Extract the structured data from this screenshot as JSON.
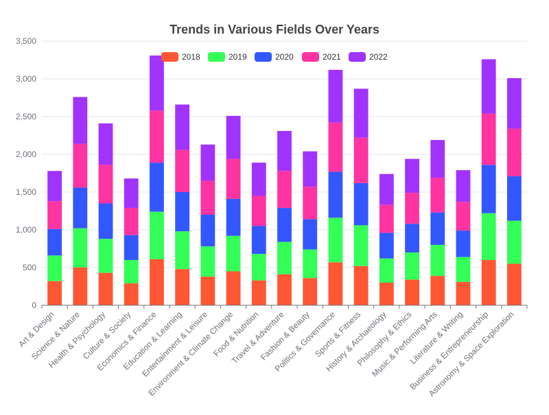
{
  "chart_data": {
    "type": "bar",
    "stacked": true,
    "title": "Trends in Various Fields Over Years",
    "xlabel": "",
    "ylabel": "",
    "ylim": [
      0,
      3500
    ],
    "yticks": [
      0,
      500,
      1000,
      1500,
      2000,
      2500,
      3000,
      3500
    ],
    "ytick_labels": [
      "0",
      "500",
      "1,000",
      "1,500",
      "2,000",
      "2,500",
      "3,000",
      "3,500"
    ],
    "grid": true,
    "legend_position": "top",
    "categories": [
      "Art & Design",
      "Science & Nature",
      "Health & Psychology",
      "Culture & Society",
      "Economics & Finance",
      "Education & Learning",
      "Entertainment & Leisure",
      "Environment & Climate Change",
      "Food & Nutrition",
      "Travel & Adventure",
      "Fashion & Beauty",
      "Politics & Governance",
      "Sports & Fitness",
      "History & Archaeology",
      "Philosophy & Ethics",
      "Music & Performing Arts",
      "Literature & Writing",
      "Business & Entrepreneurship",
      "Astronomy & Space Exploration"
    ],
    "series": [
      {
        "name": "2018",
        "color": "#ff5733",
        "values": [
          320,
          500,
          430,
          290,
          610,
          480,
          380,
          450,
          330,
          410,
          360,
          570,
          520,
          300,
          340,
          390,
          310,
          600,
          550
        ]
      },
      {
        "name": "2019",
        "color": "#33ff57",
        "values": [
          340,
          520,
          450,
          310,
          630,
          500,
          400,
          470,
          350,
          430,
          380,
          590,
          540,
          320,
          360,
          410,
          330,
          620,
          570
        ]
      },
      {
        "name": "2020",
        "color": "#3357ff",
        "values": [
          350,
          540,
          470,
          330,
          650,
          520,
          420,
          490,
          370,
          450,
          400,
          610,
          560,
          340,
          380,
          430,
          350,
          640,
          590
        ]
      },
      {
        "name": "2021",
        "color": "#ff33a1",
        "values": [
          370,
          580,
          510,
          360,
          690,
          560,
          450,
          530,
          400,
          490,
          430,
          650,
          600,
          370,
          410,
          460,
          380,
          680,
          630
        ]
      },
      {
        "name": "2022",
        "color": "#a133ff",
        "values": [
          400,
          620,
          550,
          390,
          730,
          600,
          480,
          570,
          440,
          530,
          470,
          700,
          650,
          410,
          450,
          500,
          420,
          720,
          670
        ]
      }
    ]
  }
}
